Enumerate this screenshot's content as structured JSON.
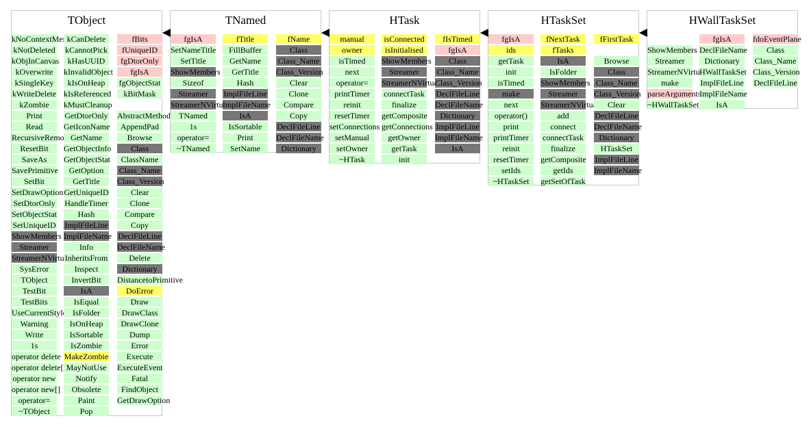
{
  "colors": {
    "method": "#ccffcc",
    "datamember": "#ffcccc",
    "highlight": "#ffff66",
    "inherited": "#777777",
    "border": "#c8c8c8"
  },
  "classes": [
    {
      "name": "TObject",
      "columns": [
        {
          "items": [
            [
              "kNoContextMenu",
              "enum"
            ],
            [
              "kNotDeleted",
              "enum"
            ],
            [
              "kObjInCanvas",
              "enum"
            ],
            [
              "kOverwrite",
              "enum"
            ],
            [
              "kSingleKey",
              "enum"
            ],
            [
              "kWriteDelete",
              "enum"
            ],
            [
              "kZombie",
              "enum"
            ],
            [
              "Print",
              "method"
            ],
            [
              "Read",
              "method"
            ],
            [
              "RecursiveRemove",
              "method"
            ],
            [
              "ResetBit",
              "method"
            ],
            [
              "SaveAs",
              "method"
            ],
            [
              "SavePrimitive",
              "method"
            ],
            [
              "SetBit",
              "method"
            ],
            [
              "SetDrawOption",
              "method"
            ],
            [
              "SetDtorOnly",
              "method"
            ],
            [
              "SetObjectStat",
              "method"
            ],
            [
              "SetUniqueID",
              "method"
            ],
            [
              "ShowMembers",
              "inherited"
            ],
            [
              "Streamer",
              "inherited"
            ],
            [
              "StreamerNVirtual",
              "inherited"
            ],
            [
              "SysError",
              "method"
            ],
            [
              "TObject",
              "method"
            ],
            [
              "TestBit",
              "method"
            ],
            [
              "TestBits",
              "method"
            ],
            [
              "UseCurrentStyle",
              "method"
            ],
            [
              "Warning",
              "method"
            ],
            [
              "Write",
              "method"
            ],
            [
              "1s",
              "method"
            ],
            [
              "operator delete",
              "method"
            ],
            [
              "operator delete[]",
              "method"
            ],
            [
              "operator new",
              "method"
            ],
            [
              "operator new[]",
              "method"
            ],
            [
              "operator=",
              "method"
            ],
            [
              "~TObject",
              "method"
            ]
          ]
        },
        {
          "items": [
            [
              "kCanDelete",
              "enum"
            ],
            [
              "kCannotPick",
              "enum"
            ],
            [
              "kHasUUID",
              "enum"
            ],
            [
              "kInvalidObject",
              "enum"
            ],
            [
              "kIsOnHeap",
              "enum"
            ],
            [
              "kIsReferenced",
              "enum"
            ],
            [
              "kMustCleanup",
              "enum"
            ],
            [
              "GetDtorOnly",
              "method"
            ],
            [
              "GetIconName",
              "method"
            ],
            [
              "GetName",
              "method"
            ],
            [
              "GetObjectInfo",
              "method"
            ],
            [
              "GetObjectStat",
              "method"
            ],
            [
              "GetOption",
              "method"
            ],
            [
              "GetTitle",
              "method"
            ],
            [
              "GetUniqueID",
              "method"
            ],
            [
              "HandleTimer",
              "method"
            ],
            [
              "Hash",
              "method"
            ],
            [
              "ImplFileLine",
              "inherited"
            ],
            [
              "ImplFileName",
              "inherited"
            ],
            [
              "Info",
              "method"
            ],
            [
              "InheritsFrom",
              "method"
            ],
            [
              "Inspect",
              "method"
            ],
            [
              "InvertBit",
              "method"
            ],
            [
              "IsA",
              "inherited"
            ],
            [
              "IsEqual",
              "method"
            ],
            [
              "IsFolder",
              "method"
            ],
            [
              "IsOnHeap",
              "method"
            ],
            [
              "IsSortable",
              "method"
            ],
            [
              "IsZombie",
              "method"
            ],
            [
              "MakeZombie",
              "highlight"
            ],
            [
              "MayNotUse",
              "method"
            ],
            [
              "Notify",
              "method"
            ],
            [
              "Obsolete",
              "method"
            ],
            [
              "Paint",
              "method"
            ],
            [
              "Pop",
              "method"
            ]
          ]
        },
        {
          "items": [
            [
              "fBits",
              "datamember"
            ],
            [
              "fUniqueID",
              "datamember"
            ],
            [
              "fgDtorOnly",
              "datamember"
            ],
            [
              "fgIsA",
              "datamember"
            ],
            [
              "fgObjectStat",
              "method"
            ],
            [
              "kBitMask",
              "method"
            ],
            [
              "",
              ""
            ],
            [
              "AbstractMethod",
              "method"
            ],
            [
              "AppendPad",
              "method"
            ],
            [
              "Browse",
              "method"
            ],
            [
              "Class",
              "inherited"
            ],
            [
              "ClassName",
              "method"
            ],
            [
              "Class_Name",
              "inherited"
            ],
            [
              "Class_Version",
              "inherited"
            ],
            [
              "Clear",
              "method"
            ],
            [
              "Clone",
              "method"
            ],
            [
              "Compare",
              "method"
            ],
            [
              "Copy",
              "method"
            ],
            [
              "DeclFileLine",
              "inherited"
            ],
            [
              "DeclFileName",
              "inherited"
            ],
            [
              "Delete",
              "method"
            ],
            [
              "Dictionary",
              "inherited"
            ],
            [
              "DistancetoPrimitive",
              "method"
            ],
            [
              "DoError",
              "highlight"
            ],
            [
              "Draw",
              "method"
            ],
            [
              "DrawClass",
              "method"
            ],
            [
              "DrawClone",
              "method"
            ],
            [
              "Dump",
              "method"
            ],
            [
              "Error",
              "method"
            ],
            [
              "Execute",
              "method"
            ],
            [
              "ExecuteEvent",
              "method"
            ],
            [
              "Fatal",
              "method"
            ],
            [
              "FindObject",
              "method"
            ],
            [
              "GetDrawOption",
              "method"
            ]
          ]
        }
      ]
    },
    {
      "name": "TNamed",
      "columns": [
        {
          "items": [
            [
              "fgIsA",
              "datamember"
            ],
            [
              "SetNameTitle",
              "method"
            ],
            [
              "SetTitle",
              "method"
            ],
            [
              "ShowMembers",
              "inherited"
            ],
            [
              "Sizeof",
              "method"
            ],
            [
              "Streamer",
              "inherited"
            ],
            [
              "StreamerNVirtual",
              "inherited"
            ],
            [
              "TNamed",
              "method"
            ],
            [
              "1s",
              "method"
            ],
            [
              "operator=",
              "method"
            ],
            [
              "~TNamed",
              "method"
            ]
          ]
        },
        {
          "items": [
            [
              "fTitle",
              "highlight"
            ],
            [
              "FillBuffer",
              "method"
            ],
            [
              "GetName",
              "method"
            ],
            [
              "GetTitle",
              "method"
            ],
            [
              "Hash",
              "method"
            ],
            [
              "ImplFileLine",
              "inherited"
            ],
            [
              "ImplFileName",
              "inherited"
            ],
            [
              "IsA",
              "inherited"
            ],
            [
              "IsSortable",
              "method"
            ],
            [
              "Print",
              "method"
            ],
            [
              "SetName",
              "method"
            ]
          ]
        },
        {
          "items": [
            [
              "fName",
              "highlight"
            ],
            [
              "Class",
              "inherited"
            ],
            [
              "Class_Name",
              "inherited"
            ],
            [
              "Class_Version",
              "inherited"
            ],
            [
              "Clear",
              "method"
            ],
            [
              "Clone",
              "method"
            ],
            [
              "Compare",
              "method"
            ],
            [
              "Copy",
              "method"
            ],
            [
              "DeclFileLine",
              "inherited"
            ],
            [
              "DeclFileName",
              "inherited"
            ],
            [
              "Dictionary",
              "inherited"
            ]
          ]
        }
      ]
    },
    {
      "name": "HTask",
      "columns": [
        {
          "items": [
            [
              "manual",
              "highlight"
            ],
            [
              "owner",
              "highlight"
            ],
            [
              "isTimed",
              "method"
            ],
            [
              "next",
              "method"
            ],
            [
              "operator=",
              "method"
            ],
            [
              "printTimer",
              "method"
            ],
            [
              "reinit",
              "method"
            ],
            [
              "resetTimer",
              "method"
            ],
            [
              "setConnections",
              "method"
            ],
            [
              "setManual",
              "method"
            ],
            [
              "setOwner",
              "method"
            ],
            [
              "~HTask",
              "method"
            ]
          ]
        },
        {
          "items": [
            [
              "isConnected",
              "highlight"
            ],
            [
              "isInitialised",
              "highlight"
            ],
            [
              "ShowMembers",
              "inherited"
            ],
            [
              "Streamer",
              "inherited"
            ],
            [
              "StreamerNVirtual",
              "inherited"
            ],
            [
              "connectTask",
              "method"
            ],
            [
              "finalize",
              "method"
            ],
            [
              "getComposite",
              "method"
            ],
            [
              "getConnections",
              "method"
            ],
            [
              "getOwner",
              "method"
            ],
            [
              "getTask",
              "method"
            ],
            [
              "init",
              "method"
            ]
          ]
        },
        {
          "items": [
            [
              "fIsTimed",
              "highlight"
            ],
            [
              "fgIsA",
              "datamember"
            ],
            [
              "Class",
              "inherited"
            ],
            [
              "Class_Name",
              "inherited"
            ],
            [
              "Class_Version",
              "inherited"
            ],
            [
              "DeclFileLine",
              "inherited"
            ],
            [
              "DeclFileName",
              "inherited"
            ],
            [
              "Dictionary",
              "inherited"
            ],
            [
              "ImplFileLine",
              "inherited"
            ],
            [
              "ImplFileName",
              "inherited"
            ],
            [
              "IsA",
              "inherited"
            ]
          ]
        }
      ]
    },
    {
      "name": "HTaskSet",
      "columns": [
        {
          "items": [
            [
              "fgIsA",
              "datamember"
            ],
            [
              "ids",
              "highlight"
            ],
            [
              "getTask",
              "method"
            ],
            [
              "init",
              "method"
            ],
            [
              "isTimed",
              "method"
            ],
            [
              "make",
              "inherited"
            ],
            [
              "next",
              "method"
            ],
            [
              "operator()",
              "method"
            ],
            [
              "print",
              "method"
            ],
            [
              "printTimer",
              "method"
            ],
            [
              "reinit",
              "method"
            ],
            [
              "resetTimer",
              "method"
            ],
            [
              "setIds",
              "method"
            ],
            [
              "~HTaskSet",
              "method"
            ]
          ]
        },
        {
          "items": [
            [
              "fNextTask",
              "highlight"
            ],
            [
              "fTasks",
              "highlight"
            ],
            [
              "IsA",
              "inherited"
            ],
            [
              "IsFolder",
              "method"
            ],
            [
              "ShowMembers",
              "inherited"
            ],
            [
              "Streamer",
              "inherited"
            ],
            [
              "StreamerNVirtual",
              "inherited"
            ],
            [
              "add",
              "method"
            ],
            [
              "connect",
              "method"
            ],
            [
              "connectTask",
              "method"
            ],
            [
              "finalize",
              "method"
            ],
            [
              "getComposite",
              "method"
            ],
            [
              "getIds",
              "method"
            ],
            [
              "getSetOfTask",
              "method"
            ]
          ]
        },
        {
          "items": [
            [
              "fFirstTask",
              "highlight"
            ],
            [
              "",
              ""
            ],
            [
              "Browse",
              "method"
            ],
            [
              "Class",
              "inherited"
            ],
            [
              "Class_Name",
              "inherited"
            ],
            [
              "Class_Version",
              "inherited"
            ],
            [
              "Clear",
              "method"
            ],
            [
              "DeclFileLine",
              "inherited"
            ],
            [
              "DeclFileName",
              "inherited"
            ],
            [
              "Dictionary",
              "inherited"
            ],
            [
              "HTaskSet",
              "method"
            ],
            [
              "ImplFileLine",
              "inherited"
            ],
            [
              "ImplFileName",
              "inherited"
            ]
          ]
        }
      ]
    },
    {
      "name": "HWallTaskSet",
      "columns": [
        {
          "items": [
            [
              "",
              ""
            ],
            [
              "ShowMembers",
              "method"
            ],
            [
              "Streamer",
              "method"
            ],
            [
              "StreamerNVirtual",
              "method"
            ],
            [
              "make",
              "method"
            ],
            [
              "parseArguments",
              "datamember"
            ],
            [
              "~HWallTaskSet",
              "method"
            ]
          ]
        },
        {
          "items": [
            [
              "fgIsA",
              "datamember"
            ],
            [
              "DeclFileName",
              "method"
            ],
            [
              "Dictionary",
              "method"
            ],
            [
              "HWallTaskSet",
              "method"
            ],
            [
              "ImplFileLine",
              "method"
            ],
            [
              "ImplFileName",
              "method"
            ],
            [
              "IsA",
              "method"
            ]
          ]
        },
        {
          "items": [
            [
              "fdoEventPlane",
              "datamember"
            ],
            [
              "Class",
              "method"
            ],
            [
              "Class_Name",
              "method"
            ],
            [
              "Class_Version",
              "method"
            ],
            [
              "DeclFileLine",
              "method"
            ]
          ]
        }
      ]
    }
  ]
}
